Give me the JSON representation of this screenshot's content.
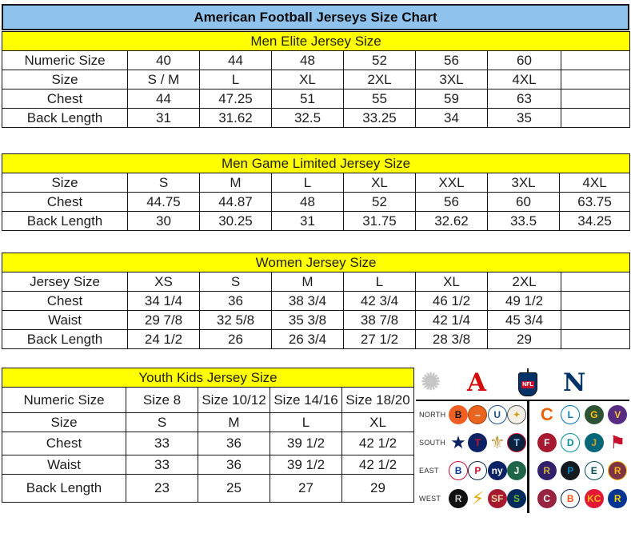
{
  "title": "American Football Jerseys Size Chart",
  "colors": {
    "title_bg": "#8fc3ee",
    "section_header_bg": "#ffff00",
    "afc_red": "#d50a0a",
    "nfc_blue": "#013369",
    "border": "#15151a"
  },
  "tables": [
    {
      "header": "Men Elite Jersey Size",
      "rows": [
        {
          "label": "Numeric Size",
          "cells": [
            "40",
            "44",
            "48",
            "52",
            "56",
            "60",
            ""
          ]
        },
        {
          "label": "Size",
          "cells": [
            "S / M",
            "L",
            "XL",
            "2XL",
            "3XL",
            "4XL",
            ""
          ]
        },
        {
          "label": "Chest",
          "cells": [
            "44",
            "47.25",
            "51",
            "55",
            "59",
            "63",
            ""
          ]
        },
        {
          "label": "Back Length",
          "cells": [
            "31",
            "31.62",
            "32.5",
            "33.25",
            "34",
            "35",
            ""
          ]
        }
      ]
    },
    {
      "header": "Men Game Limited Jersey Size",
      "rows": [
        {
          "label": "Size",
          "cells": [
            "S",
            "M",
            "L",
            "XL",
            "XXL",
            "3XL",
            "4XL"
          ]
        },
        {
          "label": "Chest",
          "cells": [
            "44.75",
            "44.87",
            "48",
            "52",
            "56",
            "60",
            "63.75"
          ]
        },
        {
          "label": "Back Length",
          "cells": [
            "30",
            "30.25",
            "31",
            "31.75",
            "32.62",
            "33.5",
            "34.25"
          ]
        }
      ]
    },
    {
      "header": "Women Jersey Size",
      "rows": [
        {
          "label": "Jersey Size",
          "cells": [
            "XS",
            "S",
            "M",
            "L",
            "XL",
            "2XL",
            ""
          ]
        },
        {
          "label": "Chest",
          "cells": [
            "34 1/4",
            "36",
            "38 3/4",
            "42 3/4",
            "46 1/2",
            "49 1/2",
            ""
          ]
        },
        {
          "label": "Waist",
          "cells": [
            "29 7/8",
            "32 5/8",
            "35 3/8",
            "38 7/8",
            "42 1/4",
            "45 3/4",
            ""
          ]
        },
        {
          "label": "Back Length",
          "cells": [
            "24 1/2",
            "26",
            "26 3/4",
            "27 1/2",
            "28 3/8",
            "29",
            ""
          ]
        }
      ]
    },
    {
      "header": "Youth Kids Jersey Size",
      "rows": [
        {
          "label": "Numeric Size",
          "cells": [
            "Size 8",
            "Size 10/12",
            "Size 14/16",
            "Size 18/20"
          ]
        },
        {
          "label": "Size",
          "cells": [
            "S",
            "M",
            "L",
            "XL"
          ]
        },
        {
          "label": "Chest",
          "cells": [
            "33",
            "36",
            "39 1/2",
            "42 1/2"
          ]
        },
        {
          "label": "Waist",
          "cells": [
            "33",
            "36",
            "39 1/2",
            "42 1/2"
          ]
        },
        {
          "label": "Back Length",
          "cells": [
            "23",
            "25",
            "27",
            "29"
          ]
        }
      ]
    }
  ],
  "logos_panel": {
    "header": {
      "starburst_glyph": "✺",
      "afc_glyph": "A",
      "nfl_label": "NFL",
      "nfc_glyph": "N"
    },
    "rows": [
      {
        "label": "NORTH",
        "afc": [
          {
            "name": "bengals",
            "shape": "disc",
            "glyph": "B",
            "bg": "#f05f23",
            "fg": "#151515"
          },
          {
            "name": "browns",
            "shape": "disc",
            "glyph": "–",
            "bg": "#e8641f",
            "fg": "#ffffff",
            "bd": "#9c4511"
          },
          {
            "name": "colts",
            "shape": "disc",
            "glyph": "U",
            "bg": "#ffffff",
            "fg": "#1d4f91",
            "bd": "#1d4f91"
          },
          {
            "name": "steelers",
            "shape": "disc",
            "glyph": "✦",
            "bg": "#f4efe4",
            "fg": "#d4a017",
            "bd": "#555555"
          }
        ],
        "nfc": [
          {
            "name": "bears",
            "shape": "glyph",
            "glyph": "C",
            "fg": "#e8630a"
          },
          {
            "name": "lions",
            "shape": "disc",
            "glyph": "L",
            "bg": "#ffffff",
            "fg": "#0076b6",
            "bd": "#0076b6"
          },
          {
            "name": "packers",
            "shape": "disc",
            "glyph": "G",
            "bg": "#2d5234",
            "fg": "#ffc20e"
          },
          {
            "name": "vikings",
            "shape": "disc",
            "glyph": "V",
            "bg": "#582c83",
            "fg": "#ffc62f"
          }
        ]
      },
      {
        "label": "SOUTH",
        "afc": [
          {
            "name": "cowboys",
            "shape": "glyph",
            "glyph": "★",
            "fg": "#0b2265"
          },
          {
            "name": "texans",
            "shape": "disc",
            "glyph": "T",
            "bg": "#0b2265",
            "fg": "#c41230"
          },
          {
            "name": "saints",
            "shape": "glyph",
            "glyph": "⚜",
            "fg": "#c0a04a"
          },
          {
            "name": "titans",
            "shape": "disc",
            "glyph": "T",
            "bg": "#0c2340",
            "fg": "#8ac6ff",
            "bd": "#c8102e"
          }
        ],
        "nfc": [
          {
            "name": "falcons",
            "shape": "disc",
            "glyph": "F",
            "bg": "#a71930",
            "fg": "#ffffff"
          },
          {
            "name": "dolphins",
            "shape": "disc",
            "glyph": "D",
            "bg": "#ffffff",
            "fg": "#008e97",
            "bd": "#008e97"
          },
          {
            "name": "jaguars",
            "shape": "disc",
            "glyph": "J",
            "bg": "#006778",
            "fg": "#d7a22a"
          },
          {
            "name": "buccaneers",
            "shape": "glyph",
            "glyph": "⚑",
            "fg": "#c8102e"
          }
        ]
      },
      {
        "label": "EAST",
        "afc": [
          {
            "name": "bills",
            "shape": "disc",
            "glyph": "B",
            "bg": "#ffffff",
            "fg": "#00338d",
            "bd": "#c60c30"
          },
          {
            "name": "patriots",
            "shape": "disc",
            "glyph": "P",
            "bg": "#ffffff",
            "fg": "#c8102e",
            "bd": "#002244"
          },
          {
            "name": "giants",
            "shape": "disc",
            "glyph": "ny",
            "bg": "#0b2265",
            "fg": "#ffffff"
          },
          {
            "name": "jets",
            "shape": "disc",
            "glyph": "J",
            "bg": "#1e6647",
            "fg": "#ffffff"
          }
        ],
        "nfc": [
          {
            "name": "ravens",
            "shape": "disc",
            "glyph": "R",
            "bg": "#33206b",
            "fg": "#d0b240"
          },
          {
            "name": "panthers",
            "shape": "disc",
            "glyph": "P",
            "bg": "#141a1f",
            "fg": "#0085ca"
          },
          {
            "name": "eagles",
            "shape": "disc",
            "glyph": "E",
            "bg": "#ffffff",
            "fg": "#004c54",
            "bd": "#004c54"
          },
          {
            "name": "redskins",
            "shape": "disc",
            "glyph": "R",
            "bg": "#7c3545",
            "fg": "#ffb612",
            "bd": "#ffb612"
          }
        ]
      },
      {
        "label": "WEST",
        "afc": [
          {
            "name": "raiders",
            "shape": "disc",
            "glyph": "R",
            "bg": "#101010",
            "fg": "#c4c8cb"
          },
          {
            "name": "chargers",
            "shape": "glyph",
            "glyph": "⚡",
            "fg": "#e8a800"
          },
          {
            "name": "fortyniners",
            "shape": "disc",
            "glyph": "SF",
            "bg": "#a6192e",
            "fg": "#e8d8a8"
          },
          {
            "name": "seahawks",
            "shape": "disc",
            "glyph": "S",
            "bg": "#002a5c",
            "fg": "#69be28"
          }
        ],
        "nfc": [
          {
            "name": "cardinals",
            "shape": "disc",
            "glyph": "C",
            "bg": "#97233f",
            "fg": "#ffffff"
          },
          {
            "name": "broncos",
            "shape": "disc",
            "glyph": "B",
            "bg": "#ffffff",
            "fg": "#fb4f14",
            "bd": "#002244"
          },
          {
            "name": "chiefs",
            "shape": "disc",
            "glyph": "KC",
            "bg": "#e31837",
            "fg": "#ffb81c"
          },
          {
            "name": "rams",
            "shape": "disc",
            "glyph": "R",
            "bg": "#003594",
            "fg": "#ffd100"
          }
        ]
      }
    ]
  }
}
